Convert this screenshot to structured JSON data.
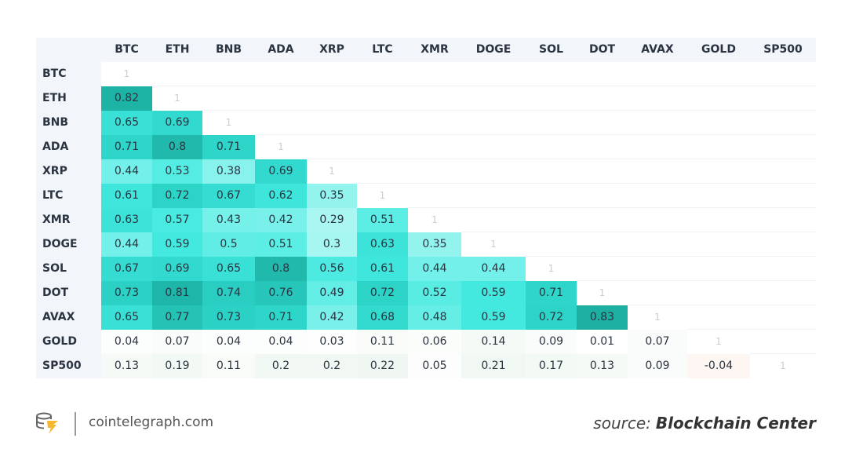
{
  "table": {
    "columns": [
      "BTC",
      "ETH",
      "BNB",
      "ADA",
      "XRP",
      "LTC",
      "XMR",
      "DOGE",
      "SOL",
      "DOT",
      "AVAX",
      "GOLD",
      "SP500"
    ],
    "rows": [
      {
        "label": "BTC",
        "values": [
          1
        ]
      },
      {
        "label": "ETH",
        "values": [
          0.82,
          1
        ]
      },
      {
        "label": "BNB",
        "values": [
          0.65,
          0.69,
          1
        ]
      },
      {
        "label": "ADA",
        "values": [
          0.71,
          0.8,
          0.71,
          1
        ]
      },
      {
        "label": "XRP",
        "values": [
          0.44,
          0.53,
          0.38,
          0.69,
          1
        ]
      },
      {
        "label": "LTC",
        "values": [
          0.61,
          0.72,
          0.67,
          0.62,
          0.35,
          1
        ]
      },
      {
        "label": "XMR",
        "values": [
          0.63,
          0.57,
          0.43,
          0.42,
          0.29,
          0.51,
          1
        ]
      },
      {
        "label": "DOGE",
        "values": [
          0.44,
          0.59,
          0.5,
          0.51,
          0.3,
          0.63,
          0.35,
          1
        ]
      },
      {
        "label": "SOL",
        "values": [
          0.67,
          0.69,
          0.65,
          0.8,
          0.56,
          0.61,
          0.44,
          0.44,
          1
        ]
      },
      {
        "label": "DOT",
        "values": [
          0.73,
          0.81,
          0.74,
          0.76,
          0.49,
          0.72,
          0.52,
          0.59,
          0.71,
          1
        ]
      },
      {
        "label": "AVAX",
        "values": [
          0.65,
          0.77,
          0.73,
          0.71,
          0.42,
          0.68,
          0.48,
          0.59,
          0.72,
          0.83,
          1
        ]
      },
      {
        "label": "GOLD",
        "values": [
          0.04,
          0.07,
          0.04,
          0.04,
          0.03,
          0.11,
          0.06,
          0.14,
          0.09,
          0.01,
          0.07,
          1
        ]
      },
      {
        "label": "SP500",
        "values": [
          0.13,
          0.19,
          0.11,
          0.2,
          0.2,
          0.22,
          0.05,
          0.21,
          0.17,
          0.13,
          0.09,
          -0.04,
          1
        ]
      }
    ]
  },
  "footer": {
    "site": "cointelegraph.com",
    "source_label": "source:",
    "source_name": "Blockchain Center"
  }
}
